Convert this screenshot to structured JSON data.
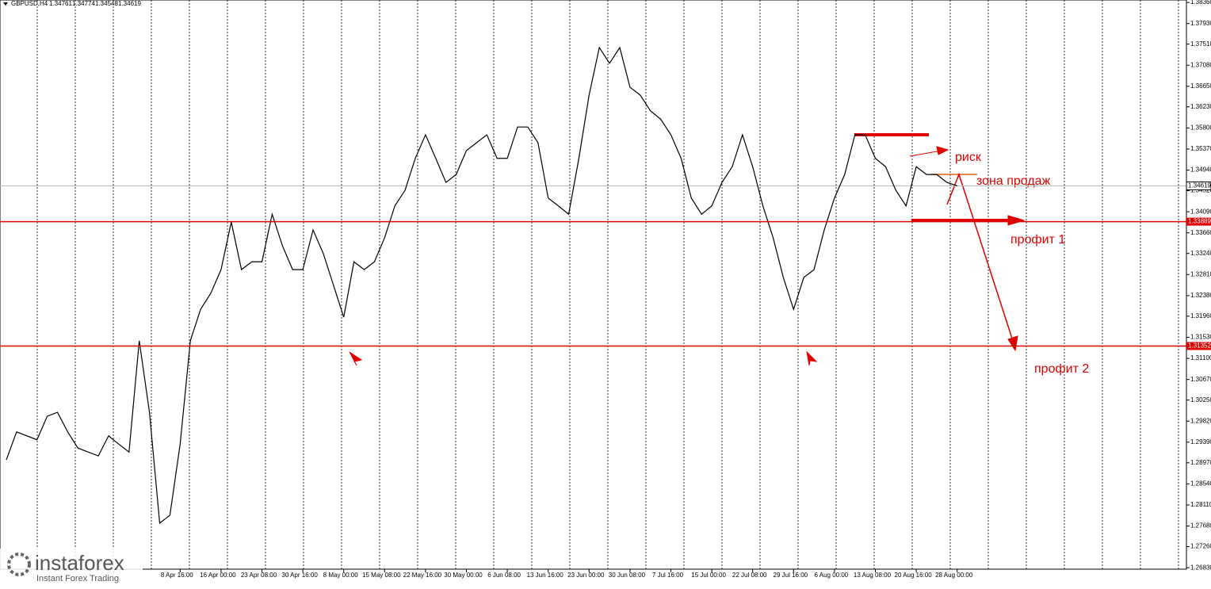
{
  "header": {
    "symbol": "GBPUSD,H4",
    "open": 1.34761,
    "high": 1.34774,
    "low": 1.34548,
    "close": 1.34619
  },
  "chart_data": {
    "type": "line",
    "color": "#000000",
    "categories": [
      null,
      null,
      null,
      null,
      null,
      null,
      null,
      null,
      null,
      null,
      null,
      null,
      null,
      null,
      null,
      null,
      null,
      "8 Apr 16:00",
      null,
      null,
      null,
      "16 Apr 00:00",
      null,
      null,
      null,
      "23 Apr 08:00",
      null,
      null,
      null,
      "30 Apr 16:00",
      null,
      null,
      null,
      "8 May 00:00",
      null,
      null,
      null,
      "15 May 08:00",
      null,
      null,
      null,
      "22 May 16:00",
      null,
      null,
      null,
      "30 May 00:00",
      null,
      null,
      null,
      "6 Jun 08:00",
      null,
      null,
      null,
      "13 Jun 16:00",
      null,
      null,
      null,
      "23 Jun 00:00",
      null,
      null,
      null,
      "30 Jun 08:00",
      null,
      null,
      null,
      "7 Jul 16:00",
      null,
      null,
      null,
      "15 Jul 00:00",
      null,
      null,
      null,
      "22 Jul 08:00",
      null,
      null,
      null,
      "29 Jul 16:00",
      null,
      null,
      null,
      "6 Aug 00:00",
      null,
      null,
      null,
      "13 Aug 08:00",
      null,
      null,
      null,
      "20 Aug 16:00",
      null,
      null,
      null,
      "28 Aug 00:00"
    ],
    "values": [
      1.2903,
      1.296,
      1.2952,
      1.2944,
      1.2992,
      1.3,
      1.296,
      1.2927,
      1.2919,
      1.2911,
      1.2952,
      1.2935,
      1.2919,
      1.3146,
      1.3,
      1.2774,
      1.279,
      1.2935,
      1.3146,
      1.321,
      1.3243,
      1.3291,
      1.3388,
      1.3291,
      1.3307,
      1.3307,
      1.3404,
      1.334,
      1.3291,
      1.3291,
      1.3372,
      1.3324,
      1.3259,
      1.3194,
      1.3307,
      1.3291,
      1.3307,
      1.3356,
      1.3421,
      1.3453,
      1.3518,
      1.3566,
      1.3518,
      1.3469,
      1.3485,
      1.3534,
      1.355,
      1.3566,
      1.3518,
      1.3518,
      1.3582,
      1.3582,
      1.355,
      1.3437,
      1.3421,
      1.3404,
      1.3518,
      1.3647,
      1.3744,
      1.3712,
      1.3744,
      1.3663,
      1.3647,
      1.3615,
      1.3598,
      1.3566,
      1.3518,
      1.3437,
      1.3404,
      1.3421,
      1.3469,
      1.3501,
      1.3566,
      1.3501,
      1.3421,
      1.3356,
      1.3275,
      1.321,
      1.3275,
      1.3291,
      1.3372,
      1.3437,
      1.3485,
      1.3566,
      1.3566,
      1.3518,
      1.3501,
      1.3453,
      1.3421,
      1.3501,
      1.3485,
      1.3485,
      1.3469,
      1.3462
    ],
    "ylim": [
      1.268,
      1.3841
    ],
    "yticks": [
      {
        "value": 1.3836,
        "label": "1.38360"
      },
      {
        "value": 1.3793,
        "label": "1.37930"
      },
      {
        "value": 1.3751,
        "label": "1.37510"
      },
      {
        "value": 1.3708,
        "label": "1.37080"
      },
      {
        "value": 1.3665,
        "label": "1.36650"
      },
      {
        "value": 1.3623,
        "label": "1.36230"
      },
      {
        "value": 1.358,
        "label": "1.35800"
      },
      {
        "value": 1.3537,
        "label": "1.35370"
      },
      {
        "value": 1.3494,
        "label": "1.34940"
      },
      {
        "value": 1.3452,
        "label": "1.34520"
      },
      {
        "value": 1.3409,
        "label": "1.34090"
      },
      {
        "value": 1.3366,
        "label": "1.33660"
      },
      {
        "value": 1.3324,
        "label": "1.33240"
      },
      {
        "value": 1.3281,
        "label": "1.32810"
      },
      {
        "value": 1.3238,
        "label": "1.32380"
      },
      {
        "value": 1.3196,
        "label": "1.31960"
      },
      {
        "value": 1.3153,
        "label": "1.31530"
      },
      {
        "value": 1.311,
        "label": "1.31100"
      },
      {
        "value": 1.3067,
        "label": "1.30670"
      },
      {
        "value": 1.3025,
        "label": "1.30250"
      },
      {
        "value": 1.2982,
        "label": "1.29820"
      },
      {
        "value": 1.2939,
        "label": "1.29390"
      },
      {
        "value": 1.2897,
        "label": "1.28970"
      },
      {
        "value": 1.2854,
        "label": "1.28540"
      },
      {
        "value": 1.2811,
        "label": "1.28110"
      },
      {
        "value": 1.2768,
        "label": "1.27680"
      },
      {
        "value": 1.2726,
        "label": "1.27260"
      },
      {
        "value": 1.2683,
        "label": "1.26830"
      }
    ],
    "levels": [
      1.33889,
      1.31352
    ],
    "current_price": 1.34619,
    "annotations": [
      "риск",
      "зона продаж",
      "профит 1",
      "профит 2"
    ]
  },
  "logo": {
    "name": "instaforex",
    "tagline": "Instant Forex Trading"
  }
}
